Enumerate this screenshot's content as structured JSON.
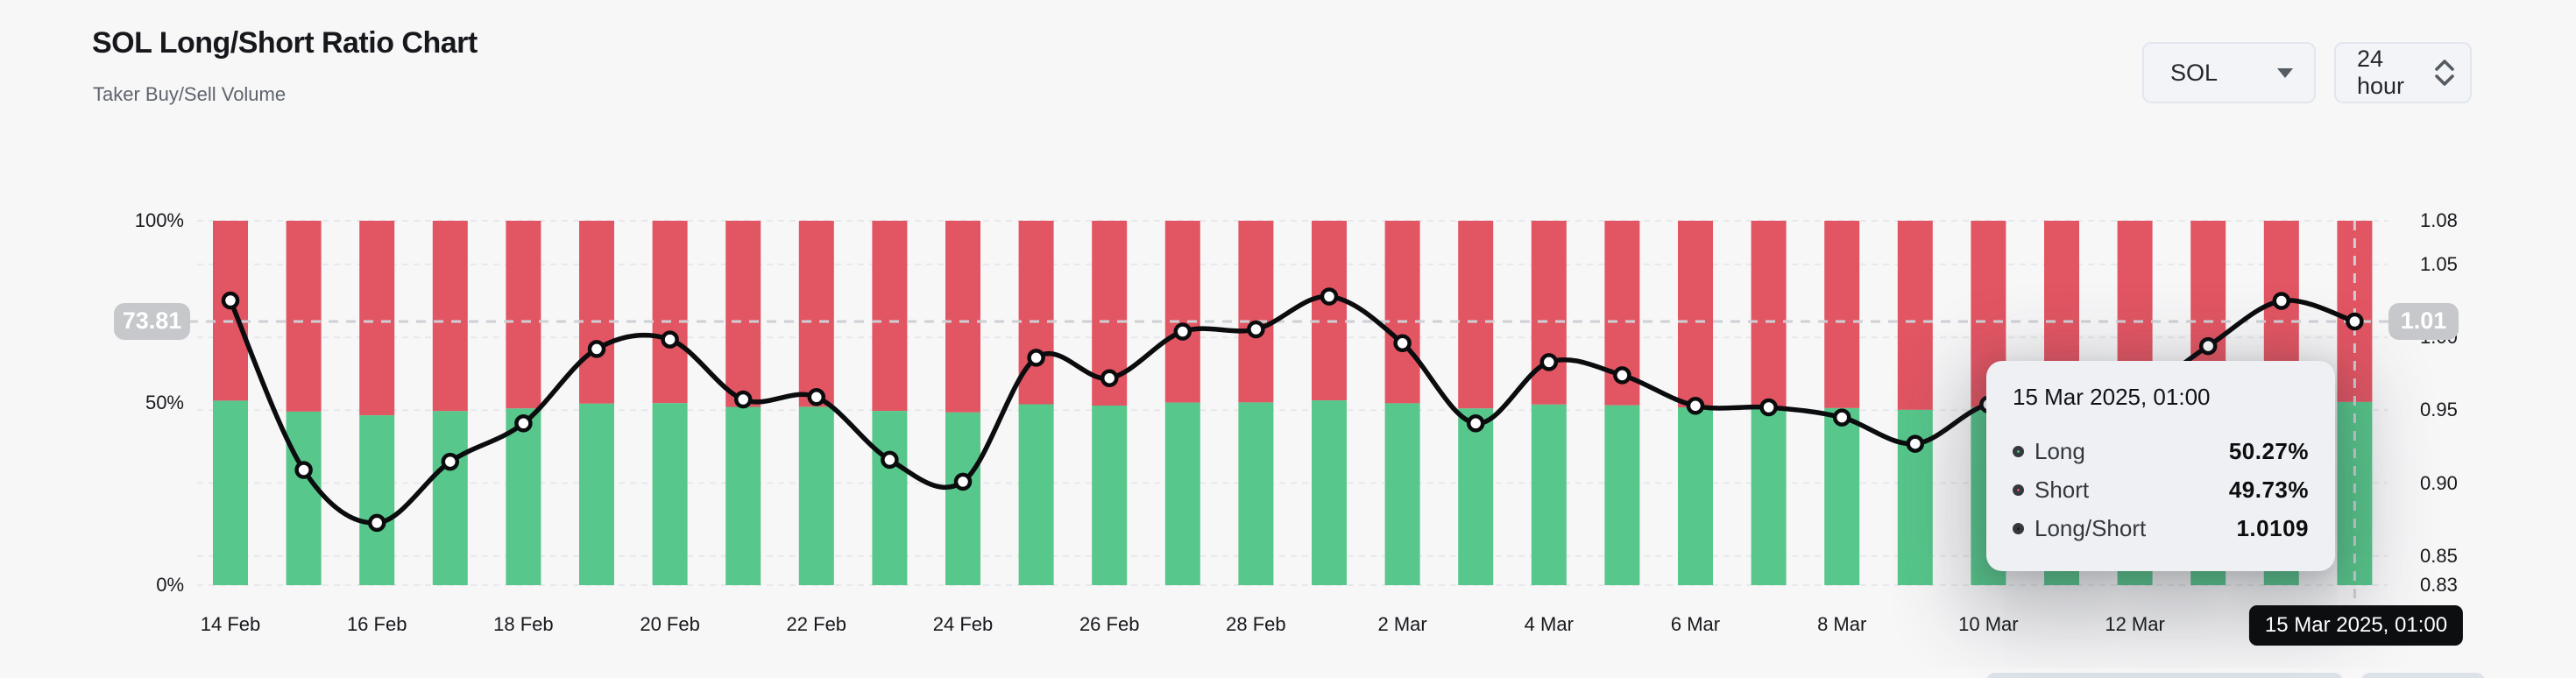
{
  "header": {
    "title": "SOL Long/Short Ratio Chart",
    "subtitle": "Taker Buy/Sell Volume"
  },
  "controls": {
    "symbol_select": {
      "value": "SOL"
    },
    "interval_select": {
      "value": "24 hour"
    }
  },
  "chart_data": {
    "type": "bar",
    "subtype": "stacked-percent-bars-with-ratio-line",
    "categories": [
      "14 Feb",
      "15 Feb",
      "16 Feb",
      "17 Feb",
      "18 Feb",
      "19 Feb",
      "20 Feb",
      "21 Feb",
      "22 Feb",
      "23 Feb",
      "24 Feb",
      "25 Feb",
      "26 Feb",
      "27 Feb",
      "28 Feb",
      "1 Mar",
      "2 Mar",
      "3 Mar",
      "4 Mar",
      "5 Mar",
      "6 Mar",
      "7 Mar",
      "8 Mar",
      "9 Mar",
      "10 Mar",
      "11 Mar",
      "12 Mar",
      "13 Mar",
      "14 Mar",
      "15 Mar"
    ],
    "series": [
      {
        "name": "Long",
        "type": "bar",
        "unit": "%",
        "color": "#57c78b",
        "values": [
          50.62,
          47.62,
          46.6,
          47.77,
          48.48,
          49.8,
          49.96,
          48.91,
          48.95,
          47.81,
          47.4,
          49.65,
          49.29,
          50.1,
          50.14,
          50.69,
          49.9,
          48.48,
          49.57,
          49.34,
          48.8,
          48.77,
          48.59,
          48.11,
          48.82,
          48.72,
          48.98,
          49.85,
          50.62,
          50.27
        ]
      },
      {
        "name": "Short",
        "type": "bar",
        "unit": "%",
        "color": "#e25563",
        "values": [
          49.38,
          52.38,
          53.4,
          52.23,
          51.52,
          50.2,
          50.04,
          51.09,
          51.05,
          52.19,
          52.6,
          50.35,
          50.71,
          49.9,
          49.86,
          49.31,
          50.1,
          51.52,
          50.43,
          50.66,
          51.2,
          51.23,
          51.41,
          51.89,
          51.18,
          51.28,
          51.02,
          50.15,
          49.38,
          49.73
        ]
      },
      {
        "name": "Long/Short",
        "type": "line",
        "color": "#0b0c0e",
        "marker": "circle-white",
        "values": [
          1.0253,
          0.909,
          0.8727,
          0.9147,
          0.941,
          0.992,
          0.9985,
          0.9574,
          0.959,
          0.916,
          0.901,
          0.986,
          0.972,
          1.004,
          1.0055,
          1.028,
          0.996,
          0.941,
          0.983,
          0.974,
          0.953,
          0.952,
          0.945,
          0.927,
          0.954,
          0.95,
          0.96,
          0.994,
          1.025,
          1.0109
        ]
      }
    ],
    "left_axis": {
      "ticks": [
        "100%",
        "50%",
        "0%"
      ],
      "range": [
        0,
        100
      ]
    },
    "right_axis": {
      "ticks": [
        "1.08",
        "1.05",
        "1.00",
        "0.95",
        "0.90",
        "0.85",
        "0.83"
      ],
      "range": [
        0.83,
        1.08
      ],
      "gridlines": [
        1.08,
        1.05,
        1.0,
        0.95,
        0.9,
        0.85,
        0.83
      ]
    },
    "x_tick_labels": [
      "14 Feb",
      "16 Feb",
      "18 Feb",
      "20 Feb",
      "22 Feb",
      "24 Feb",
      "26 Feb",
      "28 Feb",
      "2 Mar",
      "4 Mar",
      "6 Mar",
      "8 Mar",
      "10 Mar",
      "12 Mar"
    ],
    "crosshair": {
      "index": 29,
      "value": 1.0109,
      "left_badge": "73.81",
      "right_badge": "1.01",
      "x_badge": "15 Mar 2025, 01:00"
    },
    "title": "SOL Long/Short Ratio Chart",
    "legend_position": "none",
    "grid": "dashed-horizontal"
  },
  "tooltip": {
    "title": "15 Mar 2025, 01:00",
    "rows": [
      {
        "label": "Long",
        "value": "50.27%",
        "color": "#3fbf77"
      },
      {
        "label": "Short",
        "value": "49.73%",
        "color": "#e05260"
      },
      {
        "label": "Long/Short",
        "value": "1.0109",
        "color": "#1a1b1e"
      }
    ]
  },
  "colors": {
    "background": "#f7f7f8",
    "long_green": "#57c78b",
    "short_red": "#e25563",
    "line_black": "#0b0c0e",
    "crosshair_badge_gray": "#c7c8cc",
    "x_badge_black": "#0d0e10"
  }
}
